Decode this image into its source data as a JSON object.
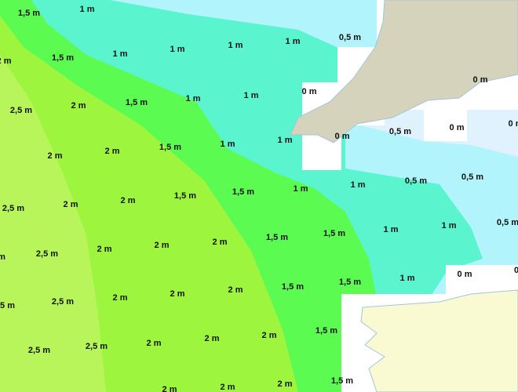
{
  "labels": [
    "1,5 m",
    "1 m",
    "2 m",
    "1,5 m",
    "1 m",
    "1 m",
    "1 m",
    "1 m",
    "0,5 m",
    "0 m",
    "0 m",
    "2,5 m",
    "2 m",
    "1,5 m",
    "1 m",
    "1 m",
    "0 m",
    "0 m",
    "1 m",
    "0 m",
    "0,5 m",
    "2 m",
    "2 m",
    "1,5 m",
    "1 m",
    "2,5 m",
    "2 m",
    "2 m",
    "1,5 m",
    "1,5 m",
    "1 m",
    "1 m",
    "0,5 m",
    "0,5 m",
    "0,5 m",
    "m",
    "2,5 m",
    "2 m",
    "2 m",
    "2 m",
    "1,5 m",
    "1,5 m",
    "1 m",
    "1 m",
    "0 m",
    "0",
    ",5 m",
    "2,5 m",
    "2 m",
    "2 m",
    "2 m",
    "1,5 m",
    "1,5 m",
    "1 m",
    "2,5 m",
    "2,5 m",
    "2 m",
    "2 m",
    "2 m",
    "1,5 m",
    "2 m",
    "2 m",
    "2 m",
    "1,5 m"
  ]
}
